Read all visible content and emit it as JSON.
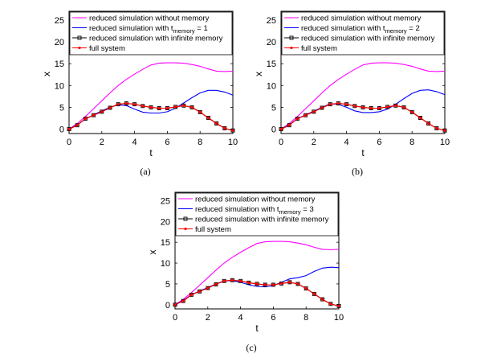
{
  "chart_data": [
    {
      "type": "line",
      "caption": "(a)",
      "xlabel": "t",
      "ylabel": "x",
      "xlim": [
        0,
        10
      ],
      "ylim": [
        -1,
        27
      ],
      "xticks": [
        "0",
        "2",
        "4",
        "6",
        "8",
        "10"
      ],
      "yticks": [
        "0",
        "5",
        "10",
        "15",
        "20",
        "25"
      ],
      "legend_position": "top",
      "legend": [
        {
          "text": "reduced simulation without memory",
          "color": "#ff00ff",
          "marker": "none"
        },
        {
          "text_before": "reduced simulation with t",
          "subscript": "memory",
          "text_after": " = 1",
          "color": "#0000ff",
          "marker": "none"
        },
        {
          "text": "reduced simulation with infinite memory",
          "color": "#000000",
          "marker": "square"
        },
        {
          "text": "full system",
          "color": "#ff0000",
          "marker": "dot"
        }
      ],
      "series": [
        {
          "color": "#ff00ff",
          "x": [
            0,
            0.5,
            1,
            1.5,
            2,
            2.5,
            3,
            3.5,
            4,
            4.5,
            5,
            5.5,
            6,
            6.5,
            7,
            7.5,
            8,
            8.5,
            9,
            9.5,
            10
          ],
          "y": [
            0,
            1.3,
            2.9,
            4.7,
            6.5,
            8.3,
            10.0,
            11.4,
            12.6,
            13.7,
            14.7,
            15.1,
            15.2,
            15.2,
            15.1,
            14.8,
            14.4,
            13.8,
            13.3,
            13.2,
            13.3
          ]
        },
        {
          "color": "#0000ff",
          "x": [
            0,
            0.5,
            1,
            1.5,
            2,
            2.5,
            3,
            3.5,
            4,
            4.5,
            5,
            5.5,
            6,
            6.5,
            7,
            7.5,
            8,
            8.5,
            9,
            9.5,
            10
          ],
          "y": [
            0,
            1.0,
            2.3,
            3.3,
            4.2,
            5.0,
            5.6,
            5.4,
            4.6,
            3.9,
            3.7,
            3.7,
            4.0,
            4.8,
            6.0,
            7.2,
            8.3,
            8.9,
            8.9,
            8.5,
            7.8
          ]
        },
        {
          "color": "#000000",
          "marker": "square",
          "x": [
            0,
            0.5,
            1,
            1.5,
            2,
            2.5,
            3,
            3.5,
            4,
            4.5,
            5,
            5.5,
            6,
            6.5,
            7,
            7.5,
            8,
            8.5,
            9,
            9.5,
            10
          ],
          "y": [
            0,
            0.9,
            2.4,
            3.2,
            4.0,
            4.9,
            5.7,
            5.9,
            5.7,
            5.3,
            5.0,
            4.8,
            4.8,
            5.1,
            5.4,
            5.0,
            3.9,
            2.6,
            1.3,
            0.2,
            -0.3
          ]
        },
        {
          "color": "#ff0000",
          "marker": "dot",
          "x": [
            0,
            0.5,
            1,
            1.5,
            2,
            2.5,
            3,
            3.5,
            4,
            4.5,
            5,
            5.5,
            6,
            6.5,
            7,
            7.5,
            8,
            8.5,
            9,
            9.5,
            10
          ],
          "y": [
            0,
            0.9,
            2.4,
            3.2,
            4.0,
            4.9,
            5.7,
            5.9,
            5.7,
            5.3,
            5.0,
            4.8,
            4.8,
            5.1,
            5.4,
            5.0,
            3.9,
            2.6,
            1.3,
            0.2,
            -0.3
          ]
        }
      ]
    },
    {
      "type": "line",
      "caption": "(b)",
      "xlabel": "t",
      "ylabel": "x",
      "xlim": [
        0,
        10
      ],
      "ylim": [
        -1,
        27
      ],
      "xticks": [
        "0",
        "2",
        "4",
        "6",
        "8",
        "10"
      ],
      "yticks": [
        "0",
        "5",
        "10",
        "15",
        "20",
        "25"
      ],
      "legend_position": "top",
      "legend": [
        {
          "text": "reduced simulation without memory",
          "color": "#ff00ff",
          "marker": "none"
        },
        {
          "text_before": "reduced simulation with t",
          "subscript": "memory",
          "text_after": " = 2",
          "color": "#0000ff",
          "marker": "none"
        },
        {
          "text": "reduced simulation with infinite memory",
          "color": "#000000",
          "marker": "square"
        },
        {
          "text": "full system",
          "color": "#ff0000",
          "marker": "dot"
        }
      ],
      "series": [
        {
          "color": "#ff00ff",
          "x": [
            0,
            0.5,
            1,
            1.5,
            2,
            2.5,
            3,
            3.5,
            4,
            4.5,
            5,
            5.5,
            6,
            6.5,
            7,
            7.5,
            8,
            8.5,
            9,
            9.5,
            10
          ],
          "y": [
            0,
            1.3,
            2.9,
            4.7,
            6.5,
            8.3,
            10.0,
            11.4,
            12.6,
            13.7,
            14.7,
            15.1,
            15.2,
            15.2,
            15.1,
            14.8,
            14.4,
            13.8,
            13.3,
            13.2,
            13.3
          ]
        },
        {
          "color": "#0000ff",
          "x": [
            0,
            0.5,
            1,
            1.5,
            2,
            2.5,
            3,
            3.5,
            4,
            4.5,
            5,
            5.5,
            6,
            6.5,
            7,
            7.5,
            8,
            8.5,
            9,
            9.5,
            10
          ],
          "y": [
            0,
            1.0,
            2.4,
            3.3,
            4.1,
            5.0,
            5.8,
            5.7,
            5.0,
            4.2,
            3.8,
            3.8,
            4.0,
            4.6,
            5.7,
            7.0,
            8.2,
            8.9,
            9.0,
            8.6,
            7.9
          ]
        },
        {
          "color": "#000000",
          "marker": "square",
          "x": [
            0,
            0.5,
            1,
            1.5,
            2,
            2.5,
            3,
            3.5,
            4,
            4.5,
            5,
            5.5,
            6,
            6.5,
            7,
            7.5,
            8,
            8.5,
            9,
            9.5,
            10
          ],
          "y": [
            0,
            0.9,
            2.4,
            3.2,
            4.0,
            4.9,
            5.7,
            5.9,
            5.7,
            5.3,
            5.0,
            4.8,
            4.8,
            5.1,
            5.4,
            5.0,
            3.9,
            2.6,
            1.3,
            0.2,
            -0.3
          ]
        },
        {
          "color": "#ff0000",
          "marker": "dot",
          "x": [
            0,
            0.5,
            1,
            1.5,
            2,
            2.5,
            3,
            3.5,
            4,
            4.5,
            5,
            5.5,
            6,
            6.5,
            7,
            7.5,
            8,
            8.5,
            9,
            9.5,
            10
          ],
          "y": [
            0,
            0.9,
            2.4,
            3.2,
            4.0,
            4.9,
            5.7,
            5.9,
            5.7,
            5.3,
            5.0,
            4.8,
            4.8,
            5.1,
            5.4,
            5.0,
            3.9,
            2.6,
            1.3,
            0.2,
            -0.3
          ]
        }
      ]
    },
    {
      "type": "line",
      "caption": "(c)",
      "xlabel": "t",
      "ylabel": "x",
      "xlim": [
        0,
        10
      ],
      "ylim": [
        -1,
        27
      ],
      "xticks": [
        "0",
        "2",
        "4",
        "6",
        "8",
        "10"
      ],
      "yticks": [
        "0",
        "5",
        "10",
        "15",
        "20",
        "25"
      ],
      "legend_position": "top",
      "legend": [
        {
          "text": "reduced simulation without memory",
          "color": "#ff00ff",
          "marker": "none"
        },
        {
          "text_before": "reduced simulation with t",
          "subscript": "memory",
          "text_after": " = 3",
          "color": "#0000ff",
          "marker": "none"
        },
        {
          "text": "reduced simulation with infinite memory",
          "color": "#000000",
          "marker": "square"
        },
        {
          "text": "full system",
          "color": "#ff0000",
          "marker": "dot"
        }
      ],
      "series": [
        {
          "color": "#ff00ff",
          "x": [
            0,
            0.5,
            1,
            1.5,
            2,
            2.5,
            3,
            3.5,
            4,
            4.5,
            5,
            5.5,
            6,
            6.5,
            7,
            7.5,
            8,
            8.5,
            9,
            9.5,
            10
          ],
          "y": [
            0,
            1.3,
            2.9,
            4.7,
            6.5,
            8.3,
            10.0,
            11.4,
            12.6,
            13.7,
            14.7,
            15.1,
            15.2,
            15.2,
            15.1,
            14.8,
            14.4,
            13.8,
            13.3,
            13.2,
            13.3
          ]
        },
        {
          "color": "#0000ff",
          "x": [
            0,
            0.5,
            1,
            1.5,
            2,
            2.5,
            3,
            3.5,
            4,
            4.5,
            5,
            5.5,
            6,
            6.5,
            7,
            7.5,
            8,
            8.5,
            9,
            9.5,
            10
          ],
          "y": [
            0,
            1.0,
            2.4,
            3.3,
            4.1,
            5.0,
            5.7,
            5.8,
            5.4,
            4.8,
            4.4,
            4.3,
            4.6,
            5.4,
            6.2,
            6.5,
            7.0,
            8.0,
            8.8,
            9.0,
            8.9
          ]
        },
        {
          "color": "#000000",
          "marker": "square",
          "x": [
            0,
            0.5,
            1,
            1.5,
            2,
            2.5,
            3,
            3.5,
            4,
            4.5,
            5,
            5.5,
            6,
            6.5,
            7,
            7.5,
            8,
            8.5,
            9,
            9.5,
            10
          ],
          "y": [
            0,
            0.9,
            2.4,
            3.2,
            4.0,
            4.9,
            5.7,
            5.9,
            5.7,
            5.3,
            5.0,
            4.8,
            4.8,
            5.1,
            5.4,
            5.0,
            3.9,
            2.6,
            1.3,
            0.2,
            -0.3
          ]
        },
        {
          "color": "#ff0000",
          "marker": "dot",
          "x": [
            0,
            0.5,
            1,
            1.5,
            2,
            2.5,
            3,
            3.5,
            4,
            4.5,
            5,
            5.5,
            6,
            6.5,
            7,
            7.5,
            8,
            8.5,
            9,
            9.5,
            10
          ],
          "y": [
            0,
            0.9,
            2.4,
            3.2,
            4.0,
            4.9,
            5.7,
            5.9,
            5.7,
            5.3,
            5.0,
            4.8,
            4.8,
            5.1,
            5.4,
            5.0,
            3.9,
            2.6,
            1.3,
            0.2,
            -0.3
          ]
        }
      ]
    }
  ]
}
